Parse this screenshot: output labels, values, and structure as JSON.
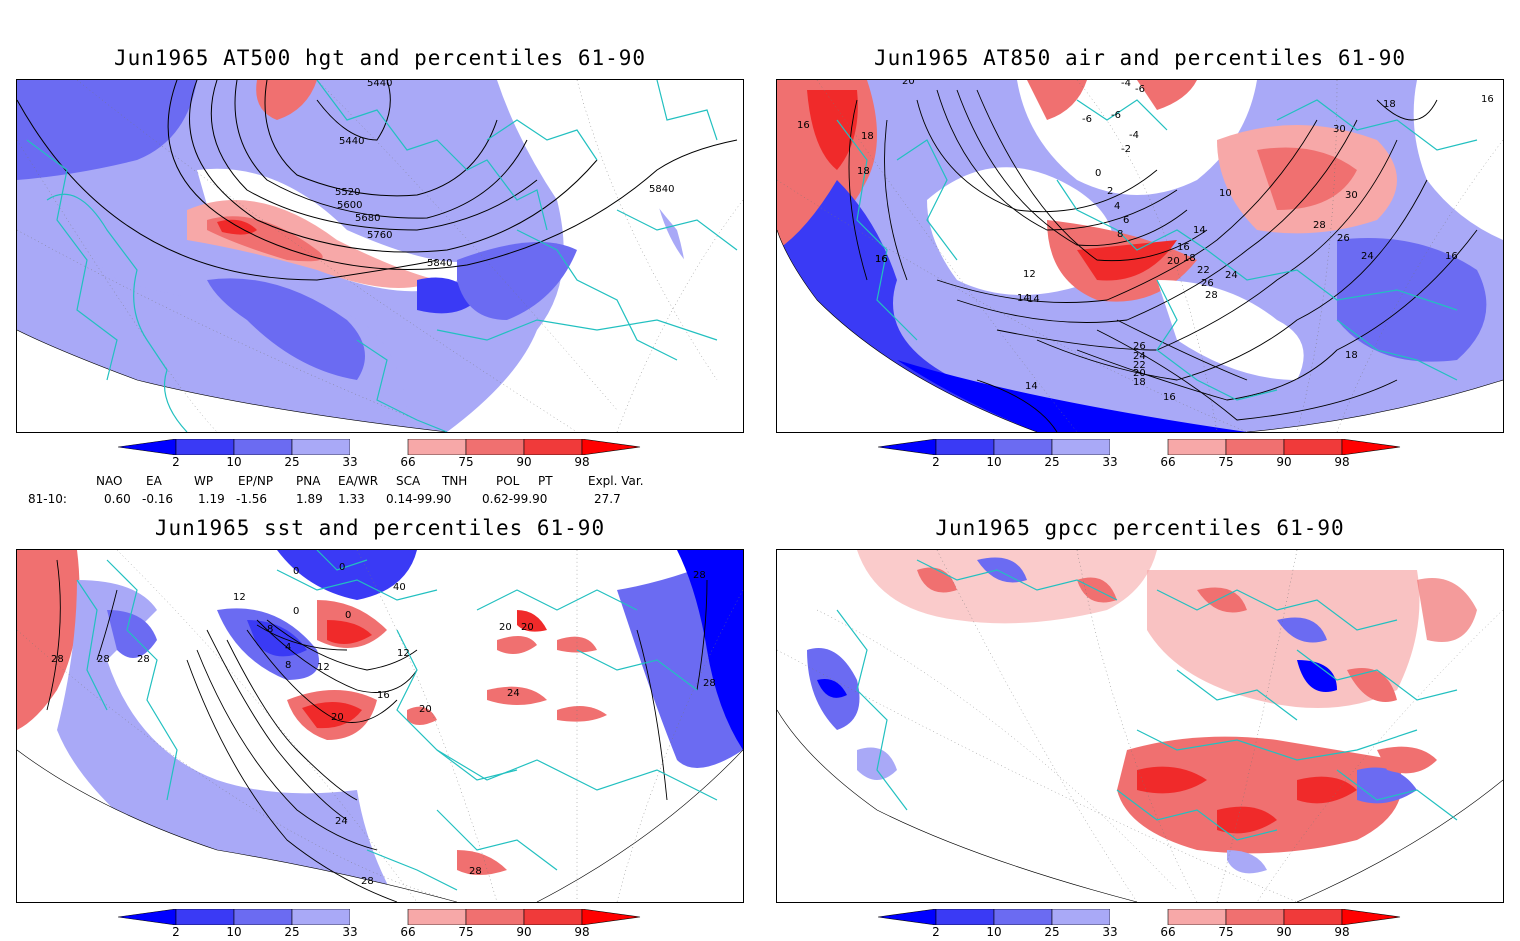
{
  "panels": [
    {
      "title": "Jun1965 AT500 hgt and percentiles 61-90",
      "contour_labels": [
        "5440",
        "5440",
        "5520",
        "5600",
        "5680",
        "5760",
        "5840",
        "5840"
      ]
    },
    {
      "title": "Jun1965 AT850 air and percentiles 61-90",
      "contour_labels": [
        "20",
        "16",
        "18",
        "16",
        "18",
        "-6",
        "-4",
        "-6",
        "-4",
        "-2",
        "-6",
        "0",
        "2",
        "4",
        "6",
        "8",
        "10",
        "14",
        "12",
        "14",
        "16",
        "16",
        "18",
        "20",
        "22",
        "24",
        "26",
        "28",
        "26",
        "24",
        "22",
        "20",
        "18",
        "16",
        "14",
        "26",
        "28",
        "30",
        "30",
        "18",
        "16",
        "18",
        "14",
        "16",
        "24"
      ]
    },
    {
      "title": "Jun1965 sst and percentiles 61-90",
      "contour_labels": [
        "28",
        "28",
        "28",
        "12",
        "8",
        "4",
        "0",
        "8",
        "12",
        "16",
        "20",
        "24",
        "28",
        "0",
        "0",
        "0",
        "40",
        "20",
        "20",
        "24",
        "28",
        "28",
        "28",
        "12",
        "20"
      ]
    },
    {
      "title": "Jun1965 gpcc percentiles 61-90",
      "contour_labels": []
    }
  ],
  "colorbar": {
    "ticks": [
      "2",
      "10",
      "25",
      "33",
      "66",
      "75",
      "90",
      "98"
    ],
    "colors": {
      "p0_2": "#0000ff",
      "p2_10": "#3a3af5",
      "p10_25": "#6b6bf2",
      "p25_33": "#a9a9f7",
      "p33_66": "#ffffff",
      "p66_75": "#f7a8a8",
      "p75_90": "#f07070",
      "p90_98": "#f03a3a",
      "p98_100": "#ff0000"
    }
  },
  "indices": {
    "headers": [
      "NAO",
      "EA",
      "WP",
      "EP/NP",
      "PNA",
      "EA/WR",
      "SCA",
      "TNH",
      "POL",
      "PT",
      "Expl. Var."
    ],
    "row_label": "81-10:",
    "values": [
      "0.60",
      "-0.16",
      "1.19",
      "-1.56",
      "1.89",
      "1.33",
      "0.14-99.90",
      "0.62-99.90",
      "27.7"
    ]
  },
  "map_colors": {
    "coastline": "#22c0c0",
    "contour": "#000000",
    "graticule": "#777777",
    "dark_blue": "#1020f0",
    "mid_blue": "#5a5af0",
    "light_blue": "#a9a9f7",
    "light_red": "#f7a8a8",
    "mid_red": "#f07070",
    "dark_red": "#f02a2a"
  }
}
